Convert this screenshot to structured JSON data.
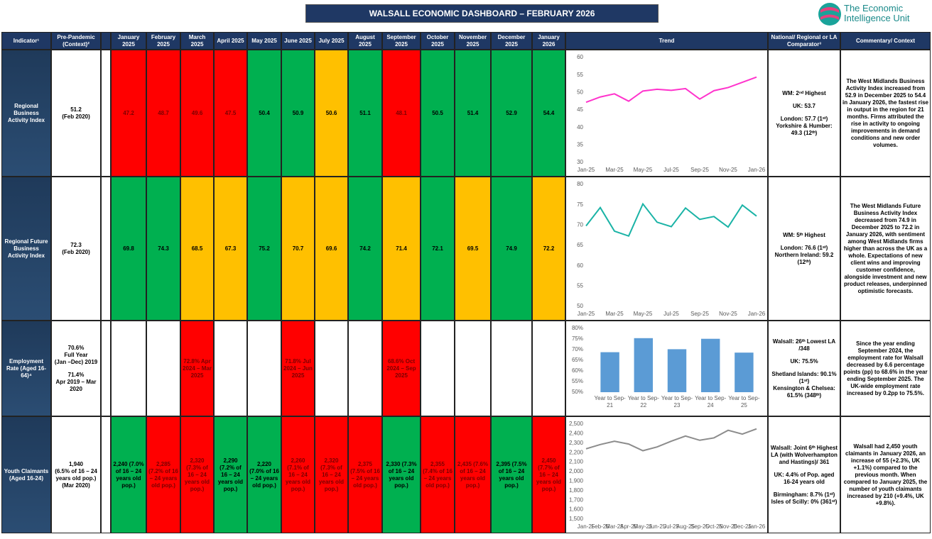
{
  "header": {
    "title": "WALSALL ECONOMIC DASHBOARD – FEBRUARY 2026",
    "logo": [
      "The Economic",
      "Intelligence Unit"
    ]
  },
  "colors": {
    "red": "#ff0000",
    "green": "#00b050",
    "amber": "#ffc000"
  },
  "table": {
    "columns": [
      "Indicator¹",
      "Pre-Pandemic (Context)²",
      "January 2025",
      "February 2025",
      "March 2025",
      "April 2025",
      "May 2025",
      "June 2025",
      "July 2025",
      "August 2025",
      "September 2025",
      "October 2025",
      "November 2025",
      "December 2025",
      "January 2026",
      "Trend",
      "National/ Regional or LA Comparator³",
      "Commentary/ Context"
    ],
    "rows": [
      {
        "indicator": "Regional Business Activity Index",
        "pre_pandemic": [
          [
            "51.2",
            "(Feb 2020)"
          ]
        ],
        "cells": [
          {
            "text": "47.2",
            "status": "red"
          },
          {
            "text": "48.7",
            "status": "red"
          },
          {
            "text": "49.6",
            "status": "red"
          },
          {
            "text": "47.5",
            "status": "red"
          },
          {
            "text": "50.4",
            "status": "green"
          },
          {
            "text": "50.9",
            "status": "green"
          },
          {
            "text": "50.6",
            "status": "amber"
          },
          {
            "text": "51.1",
            "status": "green"
          },
          {
            "text": "48.1",
            "status": "red"
          },
          {
            "text": "50.5",
            "status": "green"
          },
          {
            "text": "51.4",
            "status": "green"
          },
          {
            "text": "52.9",
            "status": "green"
          },
          {
            "text": "54.4",
            "status": "green"
          }
        ],
        "trend": {
          "type": "line",
          "categories": [
            "Jan-25",
            null,
            "Mar-25",
            null,
            "May-25",
            null,
            "Jul-25",
            null,
            "Sep-25",
            null,
            "Nov-25",
            null,
            "Jan-26"
          ],
          "values": [
            47.2,
            48.7,
            49.6,
            47.5,
            50.4,
            50.9,
            50.6,
            51.1,
            48.1,
            50.5,
            51.4,
            52.9,
            54.4
          ],
          "color": "#ff33cc",
          "ylim": [
            30,
            60
          ],
          "yticks": [
            30,
            35,
            40,
            45,
            50,
            55,
            60
          ],
          "grid": false
        },
        "comparator": [
          [
            "WM: 2ⁿᵈ Highest"
          ],
          [
            "UK: 53.7"
          ],
          [
            "London: 57.7 (1ˢᵗ)",
            "Yorkshire & Humber: 49.3 (12ᵗʰ)"
          ]
        ],
        "commentary": "The West Midlands Business Activity Index increased from 52.9 in December 2025 to 54.4 in January 2026, the fastest rise in output in the region for 21 months. Firms attributed the rise in activity to ongoing improvements in demand conditions and new order volumes."
      },
      {
        "indicator": "Regional Future Business Activity Index",
        "pre_pandemic": [
          [
            "72.3",
            "(Feb 2020)"
          ]
        ],
        "cells": [
          {
            "text": "69.8",
            "status": "green"
          },
          {
            "text": "74.3",
            "status": "green"
          },
          {
            "text": "68.5",
            "status": "amber"
          },
          {
            "text": "67.3",
            "status": "amber"
          },
          {
            "text": "75.2",
            "status": "green"
          },
          {
            "text": "70.7",
            "status": "amber"
          },
          {
            "text": "69.6",
            "status": "amber"
          },
          {
            "text": "74.2",
            "status": "green"
          },
          {
            "text": "71.4",
            "status": "amber"
          },
          {
            "text": "72.1",
            "status": "green"
          },
          {
            "text": "69.5",
            "status": "amber"
          },
          {
            "text": "74.9",
            "status": "green"
          },
          {
            "text": "72.2",
            "status": "amber"
          }
        ],
        "trend": {
          "type": "line",
          "categories": [
            "Jan-25",
            null,
            "Mar-25",
            null,
            "May-25",
            null,
            "Jul-25",
            null,
            "Sep-25",
            null,
            "Nov-25",
            null,
            "Jan-26"
          ],
          "values": [
            69.8,
            74.3,
            68.5,
            67.3,
            75.2,
            70.7,
            69.6,
            74.2,
            71.4,
            72.1,
            69.5,
            74.9,
            72.2
          ],
          "color": "#1ab3a6",
          "ylim": [
            50,
            80
          ],
          "yticks": [
            50,
            55,
            60,
            65,
            70,
            75,
            80
          ],
          "grid": false
        },
        "comparator": [
          [
            "WM: 5ᵗʰ Highest"
          ],
          [
            "London: 76.6 (1ˢᵗ)",
            "Northern Ireland: 59.2 (12ᵗʰ)"
          ]
        ],
        "commentary": "The West Midlands Future Business Activity Index decreased from 74.9 in December 2025 to 72.2 in January 2026, with sentiment among West Midlands firms higher than across the UK as a whole. Expectations of new client wins and improving customer confidence, alongside investment and new product releases, underpinned optimistic forecasts."
      },
      {
        "indicator": "Employment Rate (Aged 16-64)⁴",
        "pre_pandemic": [
          [
            "70.6%",
            "Full Year",
            "(Jan –Dec) 2019"
          ],
          [
            "71.4%",
            "Apr 2019 – Mar 2020"
          ]
        ],
        "cells": [
          null,
          null,
          {
            "text": "72.8% Apr 2024 – Mar 2025",
            "status": "red"
          },
          null,
          null,
          {
            "text": "71.8% Jul 2024 – Jun 2025",
            "status": "red"
          },
          null,
          null,
          {
            "text": "68.6% Oct 2024 – Sep 2025",
            "status": "red"
          },
          null,
          null,
          null,
          null
        ],
        "trend": {
          "type": "bar",
          "categories": [
            "Year to Sep-21",
            "Year to Sep-22",
            "Year to Sep-23",
            "Year to Sep-24",
            "Year to Sep-25"
          ],
          "values": [
            68.8,
            75.4,
            70.2,
            75.1,
            68.6
          ],
          "color": "#5b9bd5",
          "ylim": [
            50,
            80
          ],
          "yticks": [
            {
              "value": 50,
              "label": "50%"
            },
            {
              "value": 55,
              "label": "55%"
            },
            {
              "value": 60,
              "label": "60%"
            },
            {
              "value": 65,
              "label": "65%"
            },
            {
              "value": 70,
              "label": "70%"
            },
            {
              "value": 75,
              "label": "75%"
            },
            {
              "value": 80,
              "label": "80%"
            }
          ],
          "grid": false
        },
        "comparator": [
          [
            "Walsall: 26ᵗʰ Lowest LA /348"
          ],
          [
            "UK: 75.5%"
          ],
          [
            "Shetland Islands: 90.1% (1ˢᵗ)",
            "Kensington & Chelsea: 61.5% (348ᵗʰ)"
          ]
        ],
        "commentary": "Since the year ending September 2024, the employment rate for Walsall decreased by 6.6 percentage points (pp) to 68.6% in the year ending September 2025. The UK-wide employment rate increased by 0.2pp to 75.5%."
      },
      {
        "indicator": "Youth Claimants (Aged 16-24)",
        "pre_pandemic": [
          [
            "1,940",
            "(6.5% of 16 – 24 years old pop.)",
            "(Mar 2020)"
          ]
        ],
        "cells": [
          {
            "text": "2,240 (7.0% of 16 – 24 years old pop.)",
            "status": "green"
          },
          {
            "text": "2,285 (7.2% of 16 – 24 years old pop.)",
            "status": "red"
          },
          {
            "text": "2,320 (7.3% of 16 – 24 years old pop.)",
            "status": "red"
          },
          {
            "text": "2,290 (7.2% of 16 – 24 years old pop.)",
            "status": "green"
          },
          {
            "text": "2,220 (7.0% of 16 – 24 years old pop.)",
            "status": "green"
          },
          {
            "text": "2,260 (7.1% of 16 – 24 years old pop.)",
            "status": "red"
          },
          {
            "text": "2,320 (7.3% of 16 – 24 years old pop.)",
            "status": "red"
          },
          {
            "text": "2,375 (7.5% of 16 – 24 years old pop.)",
            "status": "red"
          },
          {
            "text": "2,330 (7.3% of 16 – 24 years old pop.)",
            "status": "green"
          },
          {
            "text": "2,355 (7.4% of 16 – 24 years old pop.)",
            "status": "red"
          },
          {
            "text": "2,435 (7.6% of 16 – 24 years old pop.)",
            "status": "red"
          },
          {
            "text": "2,395 (7.5% of 16 – 24 years old pop.)",
            "status": "green"
          },
          {
            "text": "2,450 (7.7% of 16 – 24 years old pop.)",
            "status": "red"
          }
        ],
        "trend": {
          "type": "line",
          "categories": [
            "Jan-25",
            "Feb-25",
            "Mar-25",
            "Apr-25",
            "May-25",
            "Jun-25",
            "Jul-25",
            "Aug-25",
            "Sep-25",
            "Oct-25",
            "Nov-25",
            "Dec-25",
            "Jan-26"
          ],
          "values": [
            2240,
            2285,
            2320,
            2290,
            2220,
            2260,
            2320,
            2375,
            2330,
            2355,
            2435,
            2395,
            2450
          ],
          "color": "#8c8c8c",
          "ylim": [
            1500,
            2500
          ],
          "yticks": [
            {
              "value": 1500,
              "label": "1,500"
            },
            {
              "value": 1600,
              "label": "1,600"
            },
            {
              "value": 1700,
              "label": "1,700"
            },
            {
              "value": 1800,
              "label": "1,800"
            },
            {
              "value": 1900,
              "label": "1,900"
            },
            {
              "value": 2000,
              "label": "2,000"
            },
            {
              "value": 2100,
              "label": "2,100"
            },
            {
              "value": 2200,
              "label": "2,200"
            },
            {
              "value": 2300,
              "label": "2,300"
            },
            {
              "value": 2400,
              "label": "2,400"
            },
            {
              "value": 2500,
              "label": "2,500"
            }
          ],
          "grid": false
        },
        "comparator": [
          [
            "Walsall: Joint 6ᵗʰ Highest LA (with Wolverhampton and Hastings)/ 361"
          ],
          [
            "UK: 4.4% of Pop. aged 16-24 years old"
          ],
          [
            "Birmingham: 8.7% (1ˢᵗ)",
            "Isles of Scilly: 0% (361ˢᵗ)"
          ]
        ],
        "commentary": "Walsall had 2,450 youth claimants in January 2026, an increase of 55 (+2.3%, UK +1.1%) compared to the previous month. When compared to January 2025, the number of youth claimants increased by 210 (+9.4%, UK +9.8%)."
      }
    ]
  }
}
